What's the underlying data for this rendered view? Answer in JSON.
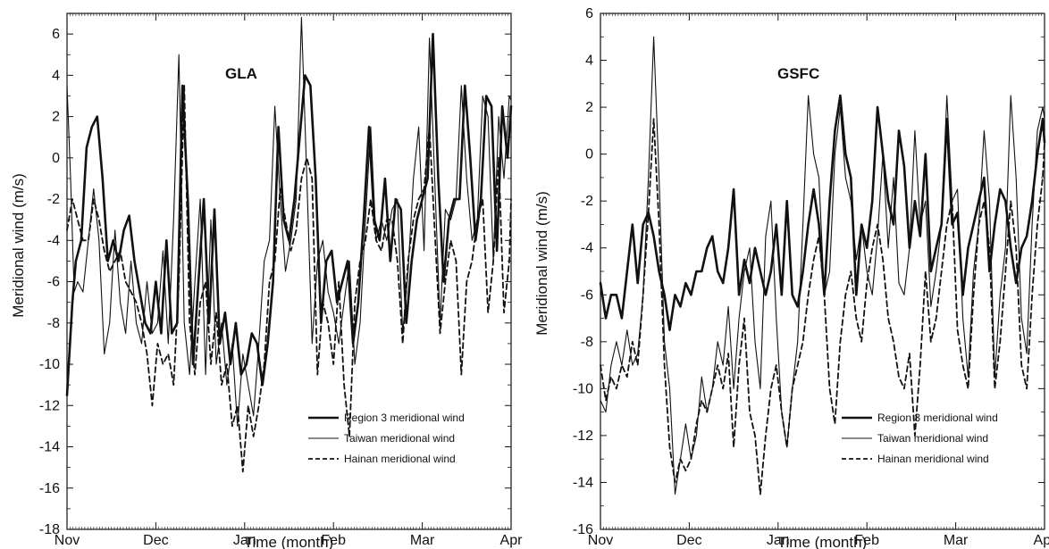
{
  "chart_data": [
    {
      "type": "line",
      "title": "GLA",
      "xlabel": "Time (month)",
      "ylabel": "Meridional wind (m/s)",
      "ylim": [
        -18,
        7
      ],
      "yticks": [
        -18,
        -16,
        -14,
        -12,
        -10,
        -8,
        -6,
        -4,
        -2,
        0,
        2,
        4,
        6
      ],
      "xlim": [
        0,
        5
      ],
      "xticks": [
        0,
        1,
        2,
        3,
        4,
        5
      ],
      "xtick_labels": [
        "Nov",
        "Dec",
        "Jan",
        "Feb",
        "Mar",
        "Apr"
      ],
      "grid": false,
      "legend_position": "bottom-right",
      "series": [
        {
          "name": "Region 3 meridional wind",
          "style": "thick",
          "x": [
            0.0,
            0.06,
            0.1,
            0.16,
            0.22,
            0.28,
            0.34,
            0.4,
            0.46,
            0.52,
            0.58,
            0.64,
            0.7,
            0.76,
            0.82,
            0.88,
            0.94,
            1.0,
            1.06,
            1.12,
            1.18,
            1.24,
            1.3,
            1.36,
            1.42,
            1.48,
            1.54,
            1.6,
            1.66,
            1.72,
            1.78,
            1.84,
            1.9,
            1.96,
            2.02,
            2.08,
            2.14,
            2.2,
            2.26,
            2.32,
            2.38,
            2.44,
            2.5,
            2.56,
            2.62,
            2.68,
            2.74,
            2.8,
            2.86,
            2.92,
            2.98,
            3.04,
            3.1,
            3.16,
            3.22,
            3.28,
            3.34,
            3.4,
            3.46,
            3.52,
            3.58,
            3.64,
            3.7,
            3.76,
            3.82,
            3.88,
            3.94,
            4.0,
            4.06,
            4.12,
            4.18,
            4.24,
            4.3,
            4.36,
            4.42,
            4.48,
            4.54,
            4.6,
            4.66,
            4.72,
            4.78,
            4.84,
            4.9,
            4.96,
            5.0
          ],
          "y": [
            -11.5,
            -7,
            -5,
            -4,
            0.5,
            1.5,
            2,
            -1,
            -5,
            -4,
            -5,
            -3.5,
            -2.8,
            -5,
            -6.5,
            -8,
            -8.5,
            -6,
            -8.5,
            -4,
            -8.5,
            -8,
            3.5,
            -2,
            -10,
            -6,
            -2,
            -8,
            -2.5,
            -9,
            -7.5,
            -10,
            -8,
            -10.5,
            -10,
            -8.5,
            -9,
            -11,
            -9,
            -6,
            1.5,
            -3,
            -4,
            -2,
            1,
            4,
            3.5,
            -1,
            -8,
            -5,
            -4.5,
            -7,
            -6,
            -5,
            -9,
            -7,
            -3,
            1.5,
            -3,
            -4,
            -1,
            -5,
            -2,
            -2.5,
            -8,
            -5,
            -3,
            -2,
            -1,
            6,
            -1,
            -6,
            -3,
            -2,
            -2,
            3.5,
            0,
            -4,
            -2,
            3,
            2.5,
            -4.5,
            2.5,
            0,
            2.5
          ]
        },
        {
          "name": "Taiwan meridional wind",
          "style": "thin",
          "x": [
            0.0,
            0.04,
            0.08,
            0.12,
            0.18,
            0.24,
            0.3,
            0.36,
            0.42,
            0.48,
            0.54,
            0.6,
            0.66,
            0.72,
            0.78,
            0.84,
            0.9,
            0.96,
            1.02,
            1.08,
            1.14,
            1.2,
            1.26,
            1.32,
            1.38,
            1.44,
            1.5,
            1.56,
            1.62,
            1.68,
            1.74,
            1.8,
            1.86,
            1.92,
            1.98,
            2.04,
            2.1,
            2.16,
            2.22,
            2.28,
            2.34,
            2.4,
            2.46,
            2.52,
            2.58,
            2.64,
            2.7,
            2.76,
            2.82,
            2.88,
            2.94,
            3.0,
            3.06,
            3.12,
            3.18,
            3.24,
            3.3,
            3.36,
            3.42,
            3.48,
            3.54,
            3.6,
            3.66,
            3.72,
            3.78,
            3.84,
            3.9,
            3.96,
            4.02,
            4.08,
            4.14,
            4.2,
            4.26,
            4.32,
            4.38,
            4.44,
            4.5,
            4.56,
            4.62,
            4.68,
            4.74,
            4.8,
            4.86,
            4.92,
            4.98,
            5.0
          ],
          "y": [
            3.5,
            -1,
            -6.5,
            -6,
            -6.5,
            -4,
            -1.5,
            -4,
            -9.5,
            -8,
            -3.5,
            -7,
            -8.5,
            -5,
            -8,
            -9,
            -6,
            -8.5,
            -8,
            -4.5,
            -9,
            -3,
            5,
            -8,
            -10.5,
            -6,
            -2,
            -10.5,
            -3,
            -10,
            -8,
            -11,
            -9,
            -13,
            -9.5,
            -11,
            -12.5,
            -9,
            -5,
            -4,
            2.5,
            -2,
            -5.5,
            -4,
            -2,
            6.8,
            -1,
            -9,
            -5,
            -4,
            -6.5,
            -7.5,
            -9,
            -7,
            -5,
            -10,
            -8,
            -3,
            1.5,
            -4,
            -3,
            -4,
            -2.5,
            -2,
            -8.5,
            -5.5,
            -1,
            1.5,
            -4.5,
            5.8,
            -1,
            -8,
            -2.5,
            -3,
            -2,
            3.5,
            -1,
            -4,
            -3,
            3,
            2,
            -5,
            2,
            -1,
            3,
            2.8
          ]
        },
        {
          "name": "Hainan meridional wind",
          "style": "dashed",
          "x": [
            0.0,
            0.06,
            0.12,
            0.18,
            0.24,
            0.3,
            0.36,
            0.42,
            0.48,
            0.54,
            0.6,
            0.66,
            0.72,
            0.78,
            0.84,
            0.9,
            0.96,
            1.02,
            1.08,
            1.14,
            1.2,
            1.26,
            1.32,
            1.38,
            1.44,
            1.5,
            1.56,
            1.62,
            1.68,
            1.74,
            1.8,
            1.86,
            1.92,
            1.98,
            2.04,
            2.1,
            2.16,
            2.22,
            2.28,
            2.34,
            2.4,
            2.46,
            2.52,
            2.58,
            2.64,
            2.7,
            2.76,
            2.82,
            2.88,
            2.94,
            3.0,
            3.06,
            3.12,
            3.18,
            3.24,
            3.3,
            3.36,
            3.42,
            3.48,
            3.54,
            3.6,
            3.66,
            3.72,
            3.78,
            3.84,
            3.9,
            3.96,
            4.02,
            4.08,
            4.14,
            4.2,
            4.26,
            4.32,
            4.38,
            4.44,
            4.5,
            4.56,
            4.62,
            4.68,
            4.74,
            4.8,
            4.86,
            4.92,
            4.98,
            5.0
          ],
          "y": [
            -3.5,
            -2,
            -3,
            -4,
            -4,
            -2,
            -3,
            -4.5,
            -5.5,
            -5,
            -4.5,
            -6,
            -6.5,
            -7,
            -8,
            -9.5,
            -12,
            -9,
            -10,
            -9.5,
            -11,
            -6,
            3.5,
            -8,
            -10.5,
            -7,
            -6,
            -10,
            -7.5,
            -11,
            -10,
            -13,
            -12,
            -15.2,
            -12,
            -13.5,
            -12,
            -10,
            -6,
            -5,
            -1.5,
            -3,
            -4.5,
            -3.5,
            -1,
            0,
            -1,
            -10.5,
            -7,
            -8,
            -10,
            -6,
            -11,
            -13.5,
            -7,
            -5,
            -4,
            -2,
            -4,
            -4.5,
            -3,
            -3,
            -5,
            -9,
            -5,
            -3,
            -2,
            -1.5,
            1.5,
            -3.5,
            -8.5,
            -6,
            -4,
            -5,
            -10.5,
            -6,
            -5,
            -3,
            -2,
            -7.5,
            -5,
            0,
            -7.5,
            -5,
            -2
          ]
        }
      ]
    },
    {
      "type": "line",
      "title": "GSFC",
      "xlabel": "Time (month)",
      "ylabel": "Meridional wind (m/s)",
      "ylim": [
        -16,
        6
      ],
      "yticks": [
        -16,
        -14,
        -12,
        -10,
        -8,
        -6,
        -4,
        -2,
        0,
        2,
        4,
        6
      ],
      "xlim": [
        0,
        5
      ],
      "xticks": [
        0,
        1,
        2,
        3,
        4,
        5
      ],
      "xtick_labels": [
        "Nov",
        "Dec",
        "Jan",
        "Feb",
        "Mar",
        "Apr"
      ],
      "grid": false,
      "legend_position": "bottom-right",
      "series": [
        {
          "name": "Region 3 meridional wind",
          "style": "thick",
          "x": [
            0.0,
            0.06,
            0.12,
            0.18,
            0.24,
            0.3,
            0.36,
            0.42,
            0.48,
            0.54,
            0.6,
            0.66,
            0.72,
            0.78,
            0.84,
            0.9,
            0.96,
            1.02,
            1.08,
            1.14,
            1.2,
            1.26,
            1.32,
            1.38,
            1.44,
            1.5,
            1.56,
            1.62,
            1.68,
            1.74,
            1.8,
            1.86,
            1.92,
            1.98,
            2.04,
            2.1,
            2.16,
            2.22,
            2.28,
            2.34,
            2.4,
            2.46,
            2.52,
            2.58,
            2.64,
            2.7,
            2.76,
            2.82,
            2.88,
            2.94,
            3.0,
            3.06,
            3.12,
            3.18,
            3.24,
            3.3,
            3.36,
            3.42,
            3.48,
            3.54,
            3.6,
            3.66,
            3.72,
            3.78,
            3.84,
            3.9,
            3.96,
            4.02,
            4.08,
            4.14,
            4.2,
            4.26,
            4.32,
            4.38,
            4.44,
            4.5,
            4.56,
            4.62,
            4.68,
            4.74,
            4.8,
            4.86,
            4.92,
            4.98,
            5.0
          ],
          "y": [
            -5.5,
            -7,
            -6,
            -6,
            -7,
            -5,
            -3,
            -5.5,
            -3,
            -2.5,
            -3.5,
            -5,
            -6,
            -7.5,
            -6,
            -6.5,
            -5.5,
            -6,
            -5,
            -5,
            -4,
            -3.5,
            -5,
            -5.5,
            -4,
            -1.5,
            -6,
            -4.5,
            -5.5,
            -4,
            -5,
            -6,
            -5,
            -3,
            -6,
            -2,
            -6,
            -6.5,
            -5,
            -3,
            -1.5,
            -3,
            -6,
            -2,
            1,
            2.5,
            0,
            -1,
            -6,
            -3,
            -4,
            -2,
            2,
            0,
            -2,
            -3,
            1,
            -0.5,
            -4,
            -2,
            -3.5,
            0,
            -5,
            -4,
            -3,
            1.5,
            -3,
            -2.5,
            -6,
            -4,
            -3,
            -2,
            -1,
            -5,
            -3,
            -1.5,
            -2,
            -4,
            -5.5,
            -4,
            -3.5,
            -2,
            0,
            1.5,
            0.5
          ]
        },
        {
          "name": "Taiwan meridional wind",
          "style": "thin",
          "x": [
            0.0,
            0.06,
            0.12,
            0.18,
            0.24,
            0.3,
            0.36,
            0.42,
            0.48,
            0.54,
            0.6,
            0.66,
            0.72,
            0.78,
            0.84,
            0.9,
            0.96,
            1.02,
            1.08,
            1.14,
            1.2,
            1.26,
            1.32,
            1.38,
            1.44,
            1.5,
            1.56,
            1.62,
            1.68,
            1.74,
            1.8,
            1.86,
            1.92,
            1.98,
            2.04,
            2.1,
            2.16,
            2.22,
            2.28,
            2.34,
            2.4,
            2.46,
            2.52,
            2.58,
            2.64,
            2.7,
            2.76,
            2.82,
            2.88,
            2.94,
            3.0,
            3.06,
            3.12,
            3.18,
            3.24,
            3.3,
            3.36,
            3.42,
            3.48,
            3.54,
            3.6,
            3.66,
            3.72,
            3.78,
            3.84,
            3.9,
            3.96,
            4.02,
            4.08,
            4.14,
            4.2,
            4.26,
            4.32,
            4.38,
            4.44,
            4.5,
            4.56,
            4.62,
            4.68,
            4.74,
            4.8,
            4.86,
            4.92,
            4.98,
            5.0
          ],
          "y": [
            -10.5,
            -11,
            -9,
            -8,
            -9,
            -7.5,
            -9,
            -8.5,
            -6,
            -1,
            5,
            -1,
            -8,
            -10,
            -14.5,
            -13,
            -11.5,
            -13,
            -12,
            -9.5,
            -11,
            -10,
            -8,
            -9,
            -6.5,
            -10,
            -7,
            -5,
            -4,
            -8,
            -10,
            -3.5,
            -2,
            -7,
            -11,
            -12.5,
            -10,
            -8,
            -3,
            2.5,
            0,
            -1,
            -6,
            -5,
            0,
            2,
            -1,
            -2,
            -4.5,
            -3,
            -5,
            -6,
            -3.5,
            0,
            -4,
            -1,
            -5.5,
            -6,
            -4,
            1,
            -3,
            -2,
            -6.5,
            -5,
            -3,
            2.5,
            -2,
            -1.5,
            -7,
            -9.5,
            -5,
            -3,
            1,
            -2,
            -9.5,
            -6,
            -4,
            2.5,
            -1,
            -7,
            -8.5,
            -3,
            1,
            2,
            1.5
          ]
        },
        {
          "name": "Hainan meridional wind",
          "style": "dashed",
          "x": [
            0.0,
            0.06,
            0.12,
            0.18,
            0.24,
            0.3,
            0.36,
            0.42,
            0.48,
            0.54,
            0.6,
            0.66,
            0.72,
            0.78,
            0.84,
            0.9,
            0.96,
            1.02,
            1.08,
            1.14,
            1.2,
            1.26,
            1.32,
            1.38,
            1.44,
            1.5,
            1.56,
            1.62,
            1.68,
            1.74,
            1.8,
            1.86,
            1.92,
            1.98,
            2.04,
            2.1,
            2.16,
            2.22,
            2.28,
            2.34,
            2.4,
            2.46,
            2.52,
            2.58,
            2.64,
            2.7,
            2.76,
            2.82,
            2.88,
            2.94,
            3.0,
            3.06,
            3.12,
            3.18,
            3.24,
            3.3,
            3.36,
            3.42,
            3.48,
            3.54,
            3.6,
            3.66,
            3.72,
            3.78,
            3.84,
            3.9,
            3.96,
            4.02,
            4.08,
            4.14,
            4.2,
            4.26,
            4.32,
            4.38,
            4.44,
            4.5,
            4.56,
            4.62,
            4.68,
            4.74,
            4.8,
            4.86,
            4.92,
            4.98,
            5.0
          ],
          "y": [
            -9,
            -10.5,
            -9.5,
            -10,
            -9,
            -9.5,
            -8,
            -9,
            -6,
            -2.5,
            1.5,
            -3,
            -9,
            -12.5,
            -14,
            -13,
            -13.5,
            -13,
            -11.5,
            -10.5,
            -11,
            -10,
            -9,
            -10,
            -8.5,
            -12.5,
            -9,
            -7,
            -11,
            -12,
            -14.5,
            -12,
            -10,
            -9,
            -11,
            -12.5,
            -10,
            -9,
            -8,
            -6,
            -4.5,
            -3.5,
            -6,
            -10,
            -11.5,
            -8,
            -6,
            -5,
            -7,
            -8,
            -5.5,
            -4,
            -3,
            -4.5,
            -7,
            -8,
            -9.5,
            -10,
            -8.5,
            -12,
            -9,
            -5,
            -8,
            -7,
            -5,
            -3,
            -2,
            -7.5,
            -9,
            -10,
            -6,
            -3,
            -2,
            -4,
            -10,
            -8,
            -5,
            -2,
            -4,
            -9,
            -10,
            -6,
            -3,
            -1,
            0.5
          ]
        }
      ]
    }
  ]
}
